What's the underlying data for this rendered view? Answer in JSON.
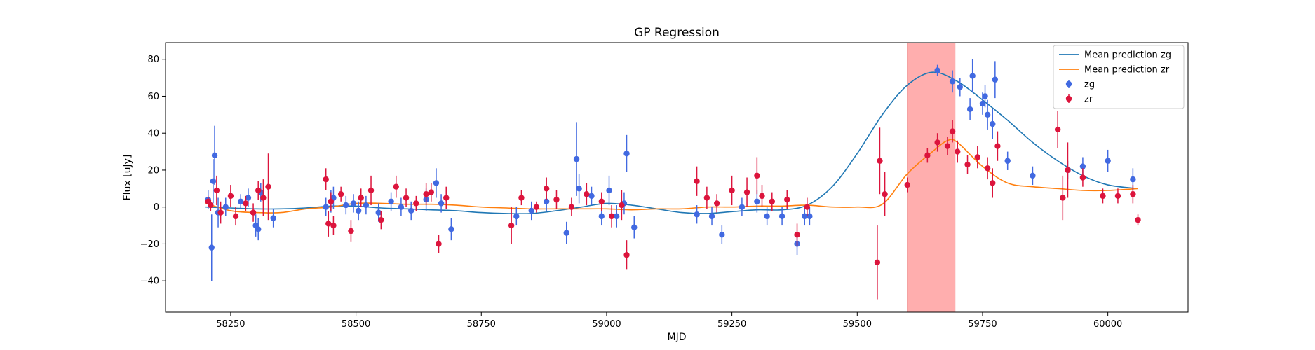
{
  "chart_data": {
    "type": "scatter",
    "title": "GP Regression",
    "xlabel": "MJD",
    "ylabel": "Flux [uJy]",
    "xlim": [
      58120,
      60160
    ],
    "ylim": [
      -57,
      89
    ],
    "xticks": [
      58250,
      58500,
      58750,
      59000,
      59250,
      59500,
      59750,
      60000
    ],
    "yticks": [
      -40,
      -20,
      0,
      20,
      40,
      60,
      80
    ],
    "grid": false,
    "legend_position": "top-right",
    "highlight_band": {
      "x_start": 59600,
      "x_end": 59695,
      "color": "#ffaaaa"
    },
    "colors": {
      "zg_line": "#1f77b4",
      "zr_line": "#ff7f0e",
      "zg_points": "#4169e1",
      "zr_points": "#dc143c"
    },
    "legend": [
      "Mean prediction zg",
      "Mean prediction zr",
      "zg",
      "zr"
    ],
    "lines": [
      {
        "name": "Mean prediction zg",
        "x": [
          58200,
          58250,
          58300,
          58350,
          58400,
          58450,
          58500,
          58550,
          58600,
          58650,
          58700,
          58750,
          58800,
          58850,
          58900,
          58950,
          59000,
          59050,
          59100,
          59150,
          59200,
          59250,
          59300,
          59350,
          59400,
          59450,
          59500,
          59550,
          59600,
          59650,
          59700,
          59750,
          59800,
          59850,
          59900,
          59950,
          60000,
          60060
        ],
        "y": [
          0,
          -0.5,
          -1,
          -1,
          -0.5,
          0.5,
          0.5,
          -0.5,
          -1,
          -1.5,
          -2,
          -3,
          -3.5,
          -3.5,
          -2,
          0,
          2,
          1,
          -1,
          -3,
          -3.5,
          -2.5,
          -1.5,
          -1.5,
          1,
          11,
          29,
          50,
          66,
          73,
          68,
          58,
          47,
          35,
          25,
          17,
          12,
          10
        ]
      },
      {
        "name": "Mean prediction zr",
        "x": [
          58200,
          58250,
          58300,
          58350,
          58400,
          58450,
          58500,
          58550,
          58600,
          58650,
          58700,
          58750,
          58800,
          58850,
          58900,
          58950,
          59000,
          59050,
          59100,
          59150,
          59200,
          59250,
          59300,
          59350,
          59400,
          59450,
          59500,
          59550,
          59600,
          59650,
          59680,
          59700,
          59750,
          59800,
          59850,
          59900,
          59950,
          60000,
          60060
        ],
        "y": [
          2,
          -2,
          -3,
          -3,
          -1,
          0,
          2,
          2,
          1.5,
          1.5,
          1,
          0,
          -0.5,
          -1,
          -1,
          -1,
          -1,
          -1.5,
          -1,
          -1,
          0,
          0,
          0.5,
          0.5,
          1,
          0,
          0,
          1.5,
          18,
          30,
          36,
          35,
          22,
          13,
          11,
          10,
          9,
          9,
          10
        ]
      }
    ],
    "series": [
      {
        "name": "zg",
        "x": [
          58205,
          58212,
          58215,
          58218,
          58225,
          58240,
          58270,
          58285,
          58300,
          58305,
          58310,
          58335,
          58440,
          58450,
          58455,
          58480,
          58495,
          58505,
          58520,
          58545,
          58570,
          58590,
          58610,
          58640,
          58660,
          58670,
          58690,
          58820,
          58850,
          58880,
          58920,
          58940,
          58945,
          58970,
          58990,
          59005,
          59020,
          59035,
          59040,
          59055,
          59180,
          59210,
          59230,
          59270,
          59300,
          59320,
          59350,
          59380,
          59395,
          59405,
          59660,
          59690,
          59705,
          59725,
          59730,
          59750,
          59755,
          59760,
          59770,
          59775,
          59800,
          59850,
          59920,
          59950,
          60000,
          60050
        ],
        "y": [
          4,
          -22,
          14,
          28,
          -3,
          0,
          3,
          5,
          -10,
          -12,
          8,
          -6,
          0,
          3,
          5,
          1,
          2,
          -2,
          1,
          -3,
          3,
          0,
          -2,
          4,
          13,
          2,
          -12,
          -5,
          -2,
          3,
          -14,
          26,
          10,
          6,
          -5,
          9,
          -5,
          2,
          29,
          -11,
          -4,
          -5,
          -15,
          0,
          3,
          -5,
          -5,
          -20,
          -5,
          -5,
          74,
          68,
          65,
          53,
          71,
          56,
          60,
          50,
          45,
          69,
          25,
          17,
          20,
          22,
          25,
          15
        ],
        "err": [
          5,
          18,
          12,
          16,
          8,
          5,
          4,
          5,
          6,
          6,
          5,
          5,
          5,
          6,
          6,
          5,
          5,
          5,
          5,
          5,
          5,
          5,
          5,
          6,
          8,
          5,
          6,
          5,
          5,
          5,
          6,
          20,
          8,
          5,
          5,
          8,
          6,
          6,
          10,
          6,
          5,
          5,
          5,
          5,
          6,
          5,
          5,
          6,
          5,
          5,
          3,
          6,
          5,
          6,
          9,
          6,
          6,
          8,
          8,
          10,
          5,
          5,
          5,
          5,
          6,
          6
        ]
      },
      {
        "name": "zr",
        "x": [
          58205,
          58210,
          58222,
          58230,
          58250,
          58260,
          58280,
          58295,
          58305,
          58315,
          58325,
          58440,
          58445,
          58450,
          58455,
          58470,
          58490,
          58510,
          58530,
          58550,
          58580,
          58600,
          58620,
          58640,
          58650,
          58665,
          58680,
          58810,
          58830,
          58860,
          58880,
          58900,
          58930,
          58960,
          58990,
          59010,
          59030,
          59040,
          59180,
          59200,
          59220,
          59250,
          59280,
          59300,
          59310,
          59330,
          59360,
          59380,
          59400,
          59540,
          59545,
          59555,
          59600,
          59640,
          59660,
          59680,
          59690,
          59700,
          59720,
          59740,
          59760,
          59770,
          59780,
          59900,
          59910,
          59920,
          59950,
          59990,
          60020,
          60050,
          60060
        ],
        "y": [
          3,
          1,
          9,
          -3,
          6,
          -5,
          2,
          -3,
          9,
          5,
          11,
          15,
          -9,
          3,
          -10,
          7,
          -13,
          5,
          9,
          -7,
          11,
          5,
          2,
          7,
          8,
          -20,
          5,
          -10,
          5,
          0,
          10,
          4,
          0,
          7,
          3,
          -5,
          1,
          -26,
          14,
          5,
          2,
          9,
          8,
          17,
          6,
          3,
          4,
          -15,
          0,
          -30,
          25,
          7,
          12,
          28,
          35,
          33,
          41,
          30,
          23,
          27,
          21,
          13,
          33,
          42,
          5,
          20,
          16,
          6,
          6,
          7,
          -7
        ],
        "err": [
          3,
          3,
          8,
          6,
          6,
          5,
          4,
          5,
          5,
          10,
          18,
          6,
          7,
          5,
          5,
          4,
          6,
          5,
          8,
          5,
          6,
          5,
          4,
          6,
          5,
          5,
          6,
          10,
          4,
          3,
          6,
          5,
          5,
          6,
          5,
          6,
          8,
          8,
          8,
          6,
          5,
          8,
          8,
          10,
          6,
          5,
          5,
          6,
          5,
          20,
          18,
          12,
          4,
          4,
          5,
          5,
          6,
          6,
          5,
          6,
          6,
          8,
          8,
          10,
          12,
          15,
          5,
          4,
          4,
          5,
          3
        ]
      }
    ]
  }
}
